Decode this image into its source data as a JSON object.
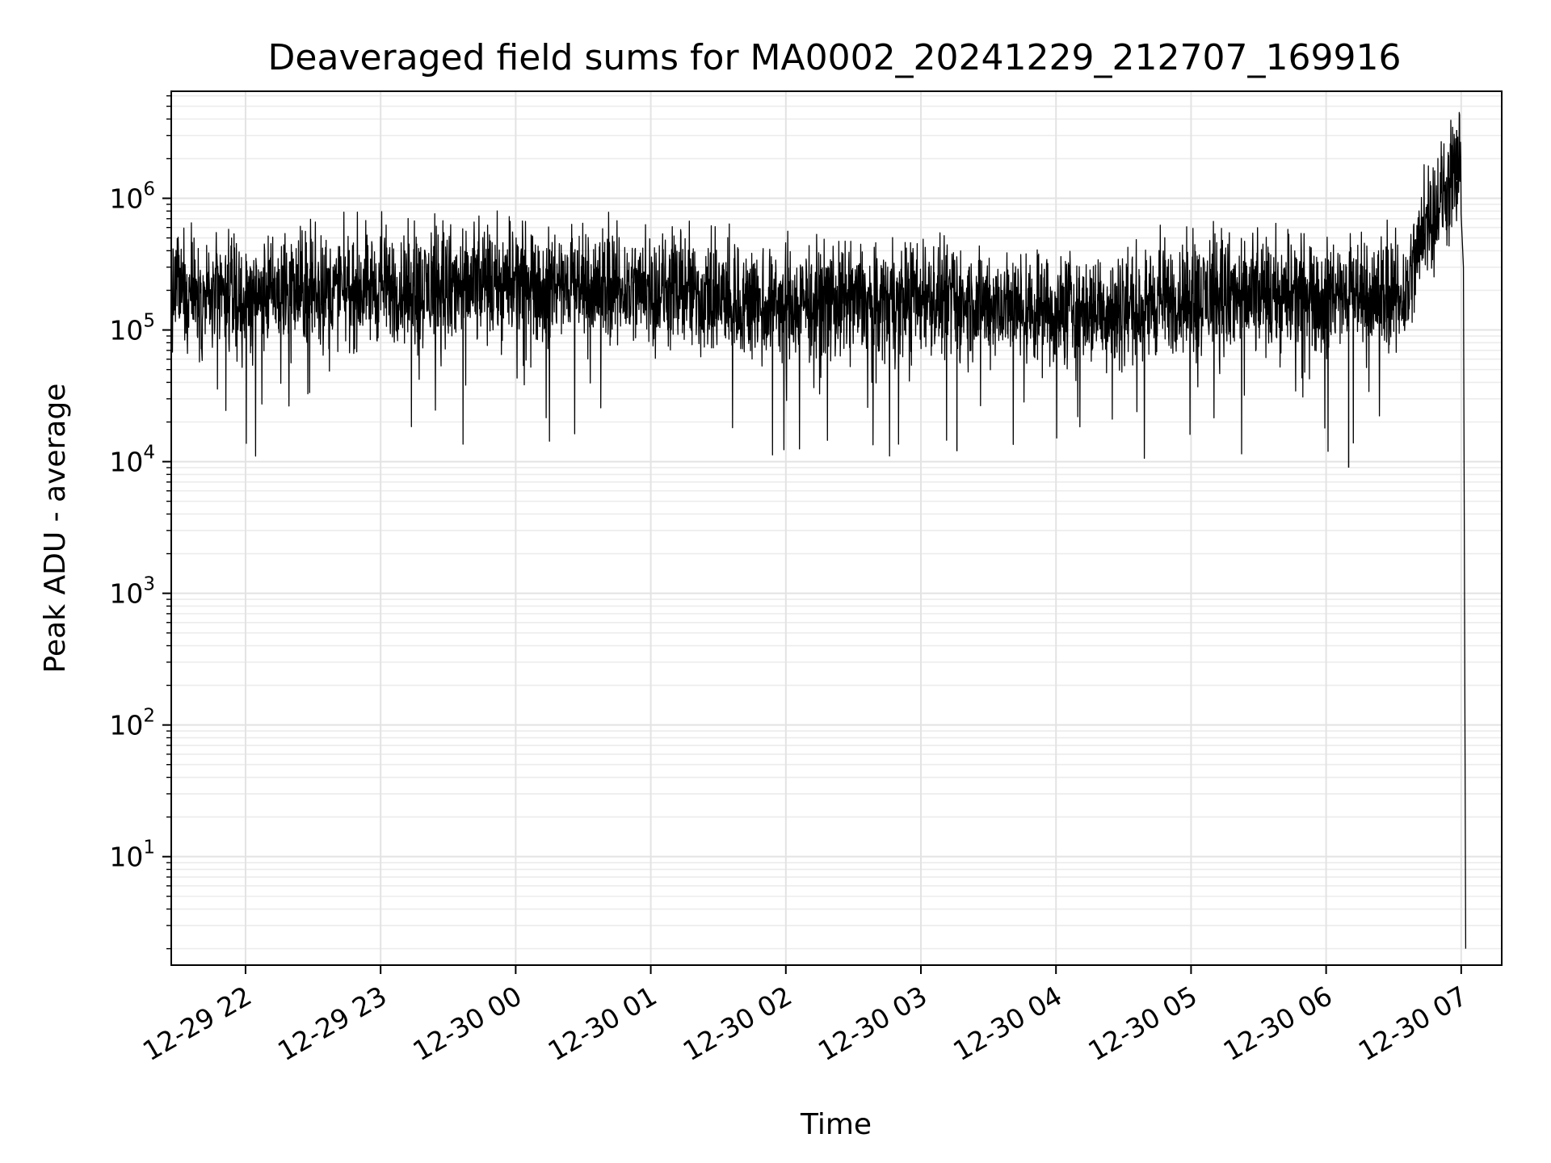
{
  "chart_data": {
    "type": "line",
    "title": "Deaveraged field sums for MA0002_20241229_212707_169916",
    "xlabel": "Time",
    "ylabel": "Peak ADU - average",
    "yscale": "log",
    "ylim": [
      1.5,
      6500000
    ],
    "xlim": [
      "2024-12-29 21:27",
      "2024-12-30 07:18"
    ],
    "grid": "on (major and minor)",
    "legend": "none",
    "x_tick_labels": [
      "12-29 22",
      "12-29 23",
      "12-30 00",
      "12-30 01",
      "12-30 02",
      "12-30 03",
      "12-30 04",
      "12-30 05",
      "12-30 06",
      "12-30 07"
    ],
    "x_tick_values": [
      "2024-12-29 22:00",
      "2024-12-29 23:00",
      "2024-12-30 00:00",
      "2024-12-30 01:00",
      "2024-12-30 02:00",
      "2024-12-30 03:00",
      "2024-12-30 04:00",
      "2024-12-30 05:00",
      "2024-12-30 06:00",
      "2024-12-30 07:00"
    ],
    "y_tick_values": [
      10,
      100,
      1000,
      10000,
      100000,
      1000000
    ],
    "y_tick_labels": [
      {
        "base": "10",
        "exp": "1"
      },
      {
        "base": "10",
        "exp": "2"
      },
      {
        "base": "10",
        "exp": "3"
      },
      {
        "base": "10",
        "exp": "4"
      },
      {
        "base": "10",
        "exp": "5"
      },
      {
        "base": "10",
        "exp": "6"
      }
    ],
    "line_color": "#000000",
    "series": [
      {
        "values_description_free": true,
        "x": [
          "2024-12-29 21:27",
          "2024-12-29 21:45",
          "2024-12-29 22:00",
          "2024-12-29 22:20",
          "2024-12-29 22:40",
          "2024-12-29 23:00",
          "2024-12-29 23:30",
          "2024-12-30 00:00",
          "2024-12-30 00:30",
          "2024-12-30 01:00",
          "2024-12-30 01:30",
          "2024-12-30 02:00",
          "2024-12-30 02:30",
          "2024-12-30 03:00",
          "2024-12-30 03:30",
          "2024-12-30 04:00",
          "2024-12-30 04:30",
          "2024-12-30 05:00",
          "2024-12-30 05:30",
          "2024-12-30 06:00",
          "2024-12-30 06:35",
          "2024-12-30 06:45",
          "2024-12-30 06:55",
          "2024-12-30 07:00",
          "2024-12-30 07:01",
          "2024-12-30 07:02"
        ],
        "y": [
          200000,
          180000,
          170000,
          190000,
          200000,
          210000,
          200000,
          220000,
          210000,
          200000,
          170000,
          150000,
          160000,
          170000,
          150000,
          140000,
          150000,
          180000,
          170000,
          180000,
          180000,
          700000,
          1200000,
          1500000,
          300000,
          2
        ]
      }
    ],
    "notable_points": [
      {
        "x": "2024-12-30 03:16",
        "y": 12000
      },
      {
        "x": "2024-12-30 06:10",
        "y": 9000
      },
      {
        "x": "2024-12-30 06:58",
        "y": 3300000
      }
    ]
  }
}
